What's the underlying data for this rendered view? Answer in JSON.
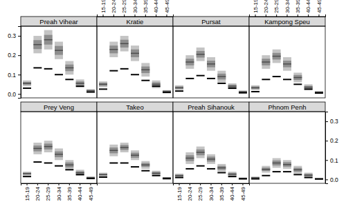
{
  "chart_data": {
    "type": "interval",
    "categories": [
      "15-19",
      "20-24",
      "25-29",
      "30-34",
      "35-39",
      "40-44",
      "45-49"
    ],
    "ylim": [
      -0.02,
      0.35
    ],
    "yticks": [
      {
        "value": 0,
        "label": "0.0"
      },
      0.1,
      0.2,
      0.3
    ],
    "panels": [
      {
        "title": "Preah Vihear",
        "lower": [
          0.04,
          0.21,
          0.23,
          0.18,
          0.1,
          0.035,
          0.01
        ],
        "upper": [
          0.07,
          0.3,
          0.33,
          0.27,
          0.17,
          0.075,
          0.025
        ],
        "inner_lower": [
          0.048,
          0.232,
          0.255,
          0.202,
          0.118,
          0.045,
          0.014
        ],
        "inner_upper": [
          0.062,
          0.278,
          0.305,
          0.248,
          0.152,
          0.065,
          0.021
        ],
        "median": [
          0.055,
          0.255,
          0.28,
          0.225,
          0.135,
          0.055,
          0.017
        ],
        "values": [
          0.03,
          0.135,
          0.13,
          0.1,
          0.075,
          0.04,
          0.01
        ]
      },
      {
        "title": "Kratie",
        "lower": [
          0.035,
          0.19,
          0.22,
          0.17,
          0.09,
          0.03,
          0.008
        ],
        "upper": [
          0.065,
          0.27,
          0.3,
          0.25,
          0.16,
          0.07,
          0.02
        ],
        "inner_lower": [
          0.042,
          0.21,
          0.24,
          0.19,
          0.108,
          0.04,
          0.011
        ],
        "inner_upper": [
          0.058,
          0.25,
          0.28,
          0.23,
          0.142,
          0.06,
          0.017
        ],
        "median": [
          0.05,
          0.23,
          0.26,
          0.21,
          0.125,
          0.05,
          0.014
        ],
        "values": [
          0.025,
          0.12,
          0.13,
          0.1,
          0.07,
          0.04,
          0.008
        ]
      },
      {
        "title": "Pursat",
        "lower": [
          0.02,
          0.13,
          0.17,
          0.12,
          0.06,
          0.025,
          0.005
        ],
        "upper": [
          0.045,
          0.2,
          0.24,
          0.19,
          0.12,
          0.055,
          0.018
        ],
        "inner_lower": [
          0.026,
          0.148,
          0.188,
          0.138,
          0.075,
          0.032,
          0.008
        ],
        "inner_upper": [
          0.039,
          0.182,
          0.222,
          0.172,
          0.105,
          0.048,
          0.015
        ],
        "median": [
          0.032,
          0.165,
          0.205,
          0.155,
          0.09,
          0.04,
          0.011
        ],
        "values": [
          0.015,
          0.08,
          0.095,
          0.08,
          0.055,
          0.03,
          0.006
        ]
      },
      {
        "title": "Kampong Speu",
        "lower": [
          0.02,
          0.13,
          0.16,
          0.12,
          0.06,
          0.02,
          0.005
        ],
        "upper": [
          0.045,
          0.2,
          0.23,
          0.19,
          0.11,
          0.05,
          0.015
        ],
        "inner_lower": [
          0.026,
          0.148,
          0.178,
          0.138,
          0.072,
          0.028,
          0.008
        ],
        "inner_upper": [
          0.039,
          0.182,
          0.212,
          0.172,
          0.098,
          0.042,
          0.012
        ],
        "median": [
          0.032,
          0.165,
          0.195,
          0.155,
          0.085,
          0.035,
          0.01
        ],
        "values": [
          0.012,
          0.075,
          0.09,
          0.075,
          0.05,
          0.025,
          0.005
        ]
      },
      {
        "title": "Prey Veng",
        "lower": [
          0.02,
          0.13,
          0.14,
          0.1,
          0.05,
          0.02,
          0.004
        ],
        "upper": [
          0.04,
          0.19,
          0.2,
          0.16,
          0.1,
          0.05,
          0.015
        ],
        "inner_lower": [
          0.025,
          0.145,
          0.155,
          0.115,
          0.062,
          0.028,
          0.007
        ],
        "inner_upper": [
          0.035,
          0.175,
          0.185,
          0.145,
          0.088,
          0.042,
          0.012
        ],
        "median": [
          0.03,
          0.16,
          0.17,
          0.13,
          0.075,
          0.035,
          0.01
        ],
        "values": [
          0.015,
          0.09,
          0.085,
          0.07,
          0.05,
          0.025,
          0.005
        ]
      },
      {
        "title": "Takeo",
        "lower": [
          0.015,
          0.12,
          0.14,
          0.1,
          0.055,
          0.02,
          0.003
        ],
        "upper": [
          0.035,
          0.18,
          0.19,
          0.15,
          0.095,
          0.045,
          0.012
        ],
        "inner_lower": [
          0.02,
          0.135,
          0.152,
          0.112,
          0.065,
          0.026,
          0.005
        ],
        "inner_upper": [
          0.03,
          0.165,
          0.178,
          0.138,
          0.085,
          0.039,
          0.01
        ],
        "median": [
          0.025,
          0.15,
          0.165,
          0.125,
          0.075,
          0.032,
          0.008
        ],
        "values": [
          0.012,
          0.085,
          0.085,
          0.065,
          0.045,
          0.02,
          0.004
        ]
      },
      {
        "title": "Preah Sihanouk",
        "lower": [
          0.01,
          0.08,
          0.11,
          0.08,
          0.04,
          0.015,
          0.002
        ],
        "upper": [
          0.03,
          0.14,
          0.17,
          0.13,
          0.08,
          0.04,
          0.01
        ],
        "inner_lower": [
          0.015,
          0.095,
          0.125,
          0.092,
          0.05,
          0.021,
          0.004
        ],
        "inner_upper": [
          0.025,
          0.125,
          0.155,
          0.118,
          0.07,
          0.034,
          0.008
        ],
        "median": [
          0.02,
          0.11,
          0.14,
          0.105,
          0.06,
          0.027,
          0.006
        ],
        "values": [
          0.01,
          0.055,
          0.07,
          0.055,
          0.035,
          0.015,
          0.003
        ]
      },
      {
        "title": "Phnom Penh",
        "lower": [
          0.003,
          0.035,
          0.06,
          0.055,
          0.03,
          0.01,
          0.001
        ],
        "upper": [
          0.015,
          0.07,
          0.11,
          0.1,
          0.07,
          0.035,
          0.008
        ],
        "inner_lower": [
          0.006,
          0.044,
          0.072,
          0.066,
          0.04,
          0.016,
          0.003
        ],
        "inner_upper": [
          0.012,
          0.061,
          0.098,
          0.089,
          0.06,
          0.029,
          0.006
        ],
        "median": [
          0.009,
          0.052,
          0.085,
          0.077,
          0.05,
          0.022,
          0.004
        ],
        "values": [
          0.003,
          0.02,
          0.04,
          0.04,
          0.025,
          0.01,
          0.002
        ]
      }
    ]
  }
}
